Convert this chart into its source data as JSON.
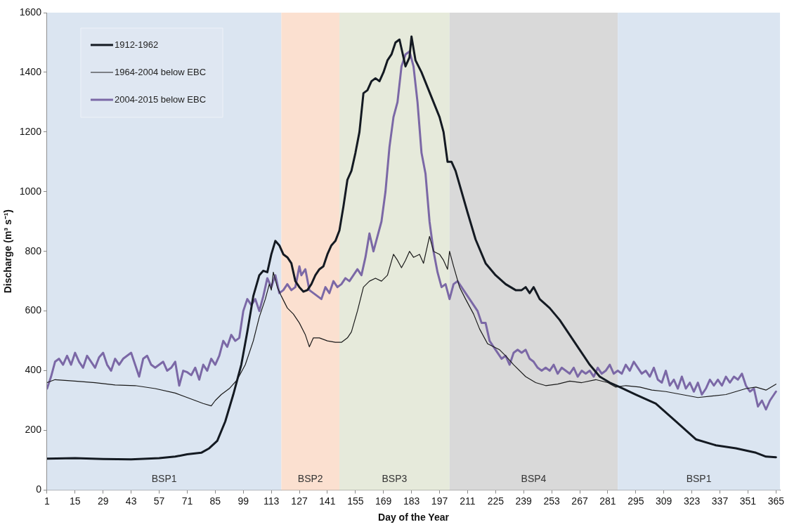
{
  "chart_data": {
    "type": "line",
    "xlabel": "Day of the Year",
    "ylabel": "Discharge (m³ s⁻¹)",
    "xlim": [
      1,
      367
    ],
    "xticks": [
      1,
      15,
      29,
      43,
      57,
      71,
      85,
      99,
      113,
      127,
      141,
      155,
      169,
      183,
      197,
      211,
      225,
      239,
      253,
      267,
      281,
      295,
      309,
      323,
      337,
      351,
      365
    ],
    "ylim": [
      0,
      1600
    ],
    "yticks": [
      0,
      200,
      400,
      600,
      800,
      1000,
      1200,
      1400,
      1600
    ],
    "grid": false,
    "legend": "top left",
    "marker": "none",
    "line_style": "solid",
    "bands": [
      {
        "axis": "x",
        "from": 1,
        "to": 118,
        "label": "BSP1",
        "color": "#dbe5f1"
      },
      {
        "axis": "x",
        "from": 118,
        "to": 147,
        "label": "BSP2",
        "color": "#fbe0d0"
      },
      {
        "axis": "x",
        "from": 147,
        "to": 202,
        "label": "BSP3",
        "color": "#e6eadb"
      },
      {
        "axis": "x",
        "from": 202,
        "to": 286,
        "label": "BSP4",
        "color": "#d9d9d9"
      },
      {
        "axis": "x",
        "from": 286,
        "to": 367,
        "label": "BSP1",
        "color": "#dbe5f1"
      }
    ],
    "series": [
      {
        "name": "1912-1962",
        "color": "#141a22",
        "x": [
          1,
          15,
          29,
          43,
          57,
          65,
          71,
          78,
          82,
          86,
          90,
          94,
          98,
          101,
          104,
          107,
          109,
          111,
          113,
          115,
          117,
          119,
          121,
          123,
          125,
          127,
          129,
          131,
          133,
          135,
          137,
          139,
          141,
          143,
          145,
          147,
          149,
          151,
          153,
          155,
          157,
          159,
          161,
          163,
          165,
          167,
          169,
          171,
          173,
          175,
          177,
          178,
          180,
          182,
          183,
          185,
          188,
          191,
          194,
          197,
          199,
          201,
          203,
          205,
          208,
          211,
          215,
          220,
          225,
          230,
          235,
          238,
          240,
          242,
          244,
          247,
          252,
          257,
          262,
          267,
          272,
          277,
          282,
          287,
          295,
          305,
          315,
          325,
          335,
          345,
          355,
          360,
          365
        ],
        "values": [
          105,
          107,
          104,
          103,
          107,
          112,
          120,
          125,
          140,
          165,
          230,
          320,
          420,
          530,
          650,
          720,
          735,
          730,
          790,
          835,
          820,
          790,
          780,
          760,
          700,
          680,
          665,
          670,
          690,
          720,
          740,
          750,
          790,
          820,
          835,
          870,
          950,
          1040,
          1070,
          1130,
          1200,
          1330,
          1340,
          1370,
          1380,
          1370,
          1400,
          1440,
          1460,
          1500,
          1510,
          1480,
          1420,
          1450,
          1520,
          1440,
          1400,
          1350,
          1300,
          1250,
          1200,
          1100,
          1100,
          1070,
          1000,
          930,
          840,
          760,
          720,
          690,
          670,
          670,
          680,
          660,
          680,
          640,
          610,
          570,
          520,
          470,
          420,
          380,
          360,
          345,
          320,
          290,
          230,
          170,
          150,
          140,
          125,
          112,
          110
        ]
      },
      {
        "name": "1964-2004 below EBC",
        "color": "#1a1a1a",
        "x": [
          1,
          5,
          15,
          25,
          35,
          45,
          55,
          65,
          71,
          75,
          79,
          83,
          85,
          88,
          92,
          96,
          100,
          104,
          107,
          110,
          112,
          113,
          114,
          116,
          118,
          121,
          124,
          127,
          130,
          132,
          134,
          137,
          141,
          145,
          148,
          151,
          153,
          156,
          159,
          162,
          165,
          168,
          171,
          174,
          176,
          178,
          180,
          182,
          184,
          187,
          189,
          191,
          192,
          194,
          197,
          199,
          201,
          202,
          204,
          207,
          210,
          214,
          217,
          221,
          224,
          227,
          230,
          234,
          240,
          245,
          250,
          256,
          262,
          268,
          275,
          281,
          285,
          290,
          297,
          303,
          310,
          318,
          326,
          333,
          340,
          345,
          350,
          355,
          360,
          365
        ],
        "values": [
          360,
          370,
          365,
          360,
          352,
          350,
          340,
          325,
          310,
          300,
          290,
          282,
          300,
          320,
          340,
          370,
          420,
          500,
          580,
          640,
          690,
          670,
          730,
          680,
          650,
          610,
          590,
          560,
          520,
          480,
          510,
          510,
          500,
          495,
          495,
          510,
          530,
          600,
          680,
          700,
          710,
          700,
          720,
          790,
          770,
          745,
          770,
          800,
          780,
          790,
          760,
          820,
          850,
          800,
          790,
          770,
          740,
          800,
          750,
          680,
          640,
          590,
          540,
          490,
          480,
          470,
          450,
          420,
          380,
          360,
          350,
          355,
          365,
          360,
          370,
          360,
          345,
          350,
          345,
          335,
          330,
          320,
          310,
          315,
          320,
          330,
          340,
          345,
          335,
          355
        ]
      },
      {
        "name": "2004-2015 below EBC",
        "color": "#7b68a6",
        "x": [
          1,
          3,
          5,
          7,
          9,
          11,
          13,
          15,
          17,
          19,
          21,
          23,
          25,
          27,
          29,
          31,
          33,
          35,
          37,
          39,
          41,
          43,
          45,
          47,
          49,
          51,
          53,
          55,
          57,
          59,
          61,
          63,
          65,
          67,
          69,
          71,
          73,
          75,
          77,
          79,
          81,
          83,
          85,
          87,
          89,
          91,
          93,
          95,
          97,
          99,
          101,
          103,
          105,
          107,
          109,
          111,
          113,
          115,
          117,
          119,
          121,
          123,
          125,
          127,
          128,
          130,
          132,
          134,
          136,
          138,
          140,
          142,
          144,
          146,
          148,
          150,
          152,
          154,
          156,
          158,
          160,
          162,
          164,
          166,
          168,
          170,
          172,
          174,
          176,
          178,
          180,
          182,
          184,
          186,
          188,
          190,
          192,
          194,
          196,
          198,
          200,
          202,
          204,
          206,
          208,
          210,
          212,
          214,
          216,
          218,
          220,
          222,
          224,
          226,
          228,
          230,
          232,
          234,
          236,
          238,
          240,
          242,
          244,
          246,
          248,
          250,
          252,
          254,
          256,
          258,
          260,
          262,
          264,
          266,
          268,
          270,
          272,
          274,
          276,
          278,
          280,
          282,
          284,
          286,
          288,
          290,
          292,
          294,
          296,
          298,
          300,
          302,
          304,
          306,
          308,
          310,
          312,
          314,
          316,
          318,
          320,
          322,
          324,
          326,
          328,
          330,
          332,
          334,
          336,
          338,
          340,
          342,
          344,
          346,
          348,
          350,
          352,
          354,
          356,
          358,
          360,
          362,
          364,
          365
        ],
        "values": [
          340,
          380,
          430,
          440,
          420,
          450,
          420,
          460,
          430,
          410,
          450,
          430,
          410,
          445,
          460,
          420,
          400,
          440,
          420,
          440,
          450,
          460,
          420,
          380,
          440,
          450,
          420,
          410,
          420,
          430,
          400,
          410,
          430,
          350,
          400,
          395,
          385,
          410,
          370,
          420,
          400,
          440,
          420,
          450,
          500,
          480,
          520,
          500,
          510,
          600,
          640,
          620,
          640,
          600,
          650,
          710,
          680,
          720,
          660,
          670,
          690,
          670,
          680,
          750,
          720,
          740,
          670,
          660,
          650,
          640,
          680,
          660,
          700,
          680,
          690,
          710,
          700,
          720,
          740,
          720,
          780,
          860,
          800,
          850,
          900,
          1000,
          1150,
          1250,
          1300,
          1420,
          1460,
          1470,
          1420,
          1300,
          1130,
          1060,
          900,
          800,
          730,
          680,
          690,
          640,
          690,
          700,
          680,
          660,
          640,
          620,
          600,
          560,
          560,
          500,
          480,
          460,
          440,
          450,
          420,
          460,
          470,
          460,
          470,
          440,
          430,
          410,
          400,
          410,
          400,
          420,
          390,
          410,
          400,
          390,
          410,
          380,
          400,
          390,
          400,
          380,
          410,
          390,
          400,
          420,
          390,
          400,
          390,
          420,
          400,
          430,
          410,
          390,
          400,
          380,
          410,
          370,
          360,
          400,
          350,
          370,
          340,
          380,
          340,
          360,
          330,
          360,
          320,
          340,
          370,
          350,
          370,
          350,
          380,
          360,
          380,
          370,
          390,
          350,
          330,
          340,
          280,
          300,
          270,
          300,
          320,
          330
        ]
      }
    ]
  }
}
